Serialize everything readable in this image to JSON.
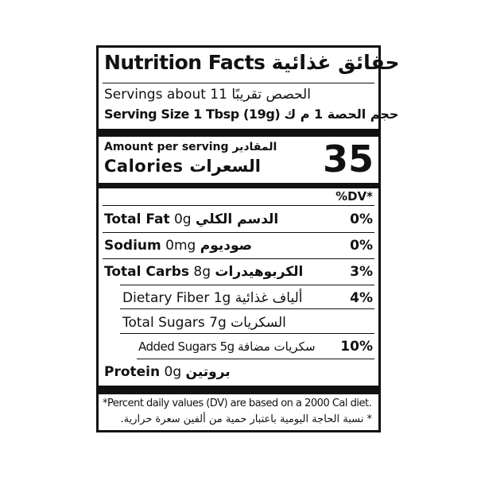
{
  "title": {
    "en": "Nutrition Facts",
    "ar": "حقائق غذائية"
  },
  "servings": {
    "en": "Servings about 11",
    "ar": "الحصص تقريبًا"
  },
  "serving_size": {
    "en": "Serving Size 1 Tbsp (19g)",
    "ar": "حجم الحصة 1 م ك"
  },
  "amount_per_serving": {
    "en": "Amount per serving",
    "ar": "المقادير"
  },
  "calories": {
    "en": "Calories",
    "ar": "السعرات",
    "value": "35"
  },
  "dv_header": "%DV*",
  "nutrients": [
    {
      "en": "Total Fat",
      "amount": "0g",
      "ar": "الدسم الكلي",
      "dv": "0%"
    },
    {
      "en": "Sodium",
      "amount": "0mg",
      "ar": "صوديوم",
      "dv": "0%"
    },
    {
      "en": "Total Carbs",
      "amount": "8g",
      "ar": "الكربوهيدرات",
      "dv": "3%"
    },
    {
      "en": "Dietary Fiber",
      "amount": "1g",
      "ar": "ألياف غذائية",
      "dv": "4%"
    },
    {
      "en": "Total Sugars",
      "amount": "7g",
      "ar": "السكريات",
      "dv": ""
    },
    {
      "en": "Added Sugars",
      "amount": "5g",
      "ar": "سكريات مضافة",
      "dv": "10%"
    },
    {
      "en": "Protein",
      "amount": "0g",
      "ar": "بروتين",
      "dv": ""
    }
  ],
  "footnote": {
    "en": "*Percent daily values (DV)  are based on a 2000 Cal diet.",
    "ar": "* نسبة الحاجة اليومية باعتبار حمية من ألفين سعرة حرارية."
  }
}
